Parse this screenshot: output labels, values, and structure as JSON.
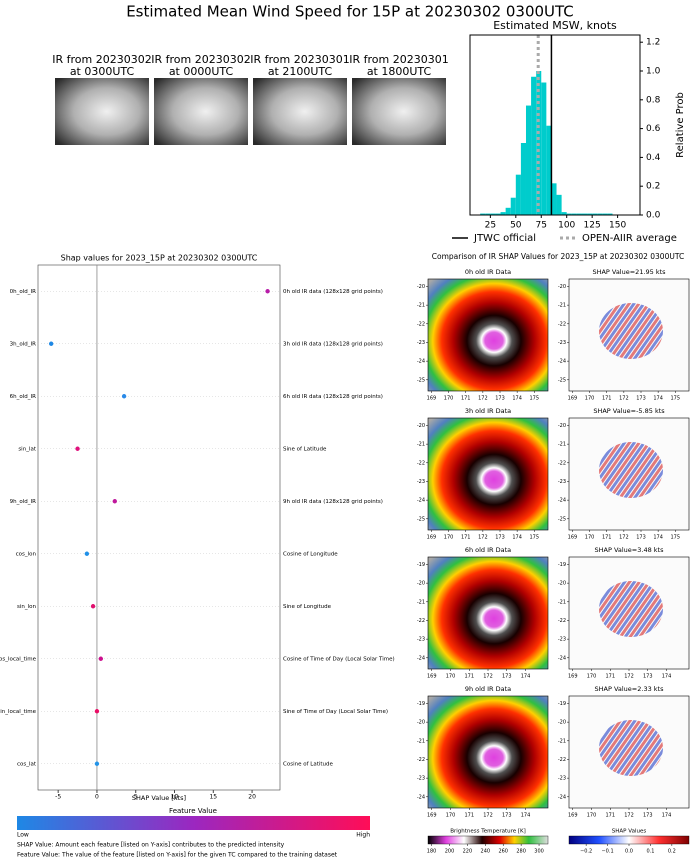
{
  "title": "Estimated Mean Wind Speed for 15P at 20230302 0300UTC",
  "ir_images": [
    {
      "caption": [
        "IR from 20230302",
        "at 0300UTC"
      ]
    },
    {
      "caption": [
        "IR from 20230302",
        "at 0000UTC"
      ]
    },
    {
      "caption": [
        "IR from 20230301",
        "at 2100UTC"
      ]
    },
    {
      "caption": [
        "IR from 20230301",
        "at 1800UTC"
      ]
    }
  ],
  "chart_data": [
    {
      "type": "histogram",
      "title": "Estimated MSW, knots",
      "ylabel": "Relative Prob",
      "bins": [
        15,
        20,
        25,
        30,
        35,
        40,
        45,
        50,
        55,
        60,
        65,
        70,
        75,
        80,
        85,
        90,
        95,
        100,
        105,
        110,
        115,
        120,
        125,
        130,
        135,
        140,
        145
      ],
      "values": [
        0.01,
        0.01,
        0.01,
        0.01,
        0.02,
        0.05,
        0.12,
        0.28,
        0.5,
        0.76,
        0.96,
        1.0,
        0.92,
        0.62,
        0.22,
        0.14,
        0.02,
        0.01,
        0.01,
        0.01,
        0.01,
        0.01,
        0.01,
        0.01,
        0.01,
        0.01
      ],
      "color": "#00cccc",
      "xlim": [
        5,
        172
      ],
      "xticks": [
        25,
        50,
        75,
        100,
        125,
        150
      ],
      "ylim": [
        0,
        1.25
      ],
      "yticks": [
        {
          "value": 0,
          "label": "0.0"
        },
        {
          "value": 0.2,
          "label": "0.2"
        },
        {
          "value": 0.4,
          "label": "0.4"
        },
        {
          "value": 0.6,
          "label": "0.6"
        },
        {
          "value": 0.8,
          "label": "0.8"
        },
        {
          "value": 1,
          "label": "1.0"
        },
        {
          "value": 1.2,
          "label": "1.2"
        }
      ],
      "reference_lines": [
        {
          "name": "JTWC official",
          "value": 85,
          "color": "#000000",
          "style": "solid"
        },
        {
          "name": "OPEN-AIIR average",
          "value": 72,
          "color": "#aaaaaa",
          "style": "dotted"
        }
      ]
    },
    {
      "type": "dot",
      "title": "Shap values for 2023_15P at 20230302 0300UTC",
      "xlabel": "SHAP Value [kts]",
      "categories": [
        "0h_old_IR",
        "3h_old_IR",
        "6h_old_IR",
        "sin_lat",
        "9h_old_IR",
        "cos_lon",
        "sin_lon",
        "cos_local_time",
        "sin_local_time",
        "cos_lat"
      ],
      "descriptions": [
        "0h old IR data (128x128 grid points)",
        "3h old IR data (128x128 grid points)",
        "6h old IR data (128x128 grid points)",
        "Sine of Latitude",
        "9h old IR data (128x128 grid points)",
        "Cosine of Longitude",
        "Sine of Longitude",
        "Cosine of Time of Day (Local Solar Time)",
        "Sine of Time of Day (Local Solar Time)",
        "Cosine of Latitude"
      ],
      "values": [
        22,
        -5.9,
        3.5,
        -2.5,
        2.3,
        -1.3,
        -0.5,
        0.5,
        0,
        0
      ],
      "colors": [
        "#b81ca8",
        "#1e88e5",
        "#2a8ae8",
        "#e0107c",
        "#c0189c",
        "#2090e8",
        "#e0106e",
        "#cc108e",
        "#ea0e66",
        "#2494e8"
      ],
      "xlim": [
        -7.6,
        23.6
      ],
      "xticks": [
        -5,
        0,
        5,
        10,
        15,
        20
      ],
      "colorbar": {
        "title": "Feature Value",
        "low": "Low",
        "high": "High"
      },
      "notes": [
        "SHAP Value: Amount each feature [listed on Y-axis] contributes to the predicted intensity",
        "Feature Value: The value of the feature [listed on Y-axis] for the given TC compared to the training dataset"
      ]
    }
  ],
  "comparison": {
    "title": "Comparison of IR SHAP Values for 2023_15P at 20230302 0300UTC",
    "rows": [
      {
        "ir_title": "0h old IR Data",
        "shap_title": "SHAP Value=21.95 kts",
        "xlim": [
          168.8,
          175.8
        ],
        "ylim": [
          -19.6,
          -25.6
        ],
        "xticks": [
          169,
          170,
          171,
          172,
          173,
          174,
          175
        ],
        "yticks": [
          -20,
          -21,
          -22,
          -23,
          -24,
          -25
        ]
      },
      {
        "ir_title": "3h old IR Data",
        "shap_title": "SHAP Value=-5.85 kts",
        "xlim": [
          168.8,
          175.8
        ],
        "ylim": [
          -19.6,
          -25.6
        ],
        "xticks": [
          169,
          170,
          171,
          172,
          173,
          174,
          175
        ],
        "yticks": [
          -20,
          -21,
          -22,
          -23,
          -24,
          -25
        ]
      },
      {
        "ir_title": "6h old IR Data",
        "shap_title": "SHAP Value=3.48 kts",
        "xlim": [
          168.8,
          175.2
        ],
        "ylim": [
          -18.6,
          -24.6
        ],
        "xticks": [
          169,
          170,
          171,
          172,
          173,
          174
        ],
        "yticks": [
          -19,
          -20,
          -21,
          -22,
          -23,
          -24
        ]
      },
      {
        "ir_title": "9h old IR Data",
        "shap_title": "SHAP Value=2.33 kts",
        "xlim": [
          168.8,
          175.2
        ],
        "ylim": [
          -18.6,
          -24.6
        ],
        "xticks": [
          169,
          170,
          171,
          172,
          173,
          174
        ],
        "yticks": [
          -19,
          -20,
          -21,
          -22,
          -23,
          -24
        ]
      }
    ],
    "colorbars": [
      {
        "label": "Brightness Temperature [K]",
        "clim": [
          176,
          310
        ],
        "ticks": [
          180,
          200,
          220,
          240,
          260,
          280,
          300
        ]
      },
      {
        "label": "SHAP Values",
        "clim": [
          -0.28,
          0.28
        ],
        "ticks": [
          {
            "value": -0.2,
            "label": "−0.2"
          },
          {
            "value": -0.1,
            "label": "−0.1"
          },
          {
            "value": 0,
            "label": "0.0"
          },
          {
            "value": 0.1,
            "label": "0.1"
          },
          {
            "value": 0.2,
            "label": "0.2"
          }
        ]
      }
    ]
  }
}
